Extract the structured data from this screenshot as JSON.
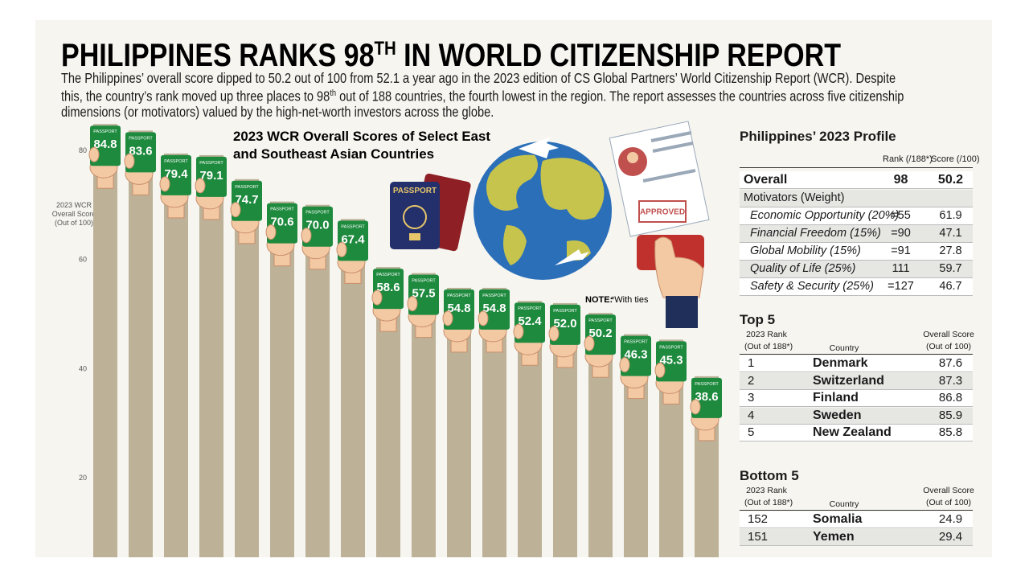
{
  "header": {
    "title": "PHILIPPINES RANKS 98",
    "title_sup": "TH",
    "title_end": " IN WORLD CITIZENSHIP REPORT",
    "intro_1": "The Philippines’ overall score dipped to 50.2 out of 100 from 52.1 a year ago in the 2023 edition of CS Global Partners’ World Citizenship Report (WCR). Despite this, the country’s rank moved up three places to 98",
    "intro_sup": "th",
    "intro_2": " out of 188 countries, the fourth lowest in the region. The report assesses the countries across five citizenship dimensions (or motivators) valued by the high-net-worth investors across the globe."
  },
  "chart_data": {
    "type": "bar",
    "title": [
      "2023 WCR Overall Scores of Select East",
      "and Southeast Asian Countries"
    ],
    "y_label": [
      "2023 WCR",
      "Overall Score",
      "(Out of 100)"
    ],
    "categories": [
      null,
      null,
      null,
      null,
      null,
      null,
      null,
      null,
      null,
      null,
      null,
      null,
      null,
      null,
      null,
      null,
      null,
      null
    ],
    "values": [
      84.8,
      83.6,
      79.4,
      79.1,
      74.7,
      70.6,
      70.0,
      67.4,
      58.6,
      57.5,
      54.8,
      54.8,
      52.4,
      52.0,
      50.2,
      46.3,
      45.3,
      38.6
    ],
    "value_labels": [
      "84.8",
      "83.6",
      "79.4",
      "79.1",
      "74.7",
      "70.6",
      "70.0",
      "67.4",
      "58.6",
      "57.5",
      "54.8",
      "54.8",
      "52.4",
      "52.0",
      "50.2",
      "46.3",
      "45.3",
      "38.6"
    ],
    "color": "#bdb198",
    "passport_color": "#1e8a3e",
    "passport_label": "PASSPORT",
    "ylim": [
      0,
      100
    ],
    "yticks": [
      20,
      40,
      60,
      80
    ],
    "note_label": "NOTE:",
    "note": " *With ties"
  },
  "illustration": {
    "passport": "PASSPORT",
    "approved": "APPROVED"
  },
  "profile": {
    "title": "Philippines’ 2023 Profile",
    "columns": [
      "Rank (/188*)",
      "Score (/100)"
    ],
    "rows": [
      [
        "Overall",
        "98",
        "50.2"
      ],
      [
        "Motivators (Weight)"
      ],
      [
        "Economic Opportunity (20%)",
        "=55",
        "61.9"
      ],
      [
        "Financial Freedom (15%)",
        "=90",
        "47.1"
      ],
      [
        "Global Mobility (15%)",
        "=91",
        "27.8"
      ],
      [
        "Quality of Life (25%)",
        "111",
        "59.7"
      ],
      [
        "Safety & Security (25%)",
        "=127",
        "46.7"
      ]
    ]
  },
  "top5": {
    "title": "Top 5",
    "columns": [
      [
        "2023 Rank",
        "(Out of 188*)"
      ],
      [
        "Country"
      ],
      [
        "Overall Score",
        "(Out of 100)"
      ]
    ],
    "rows": [
      [
        "1",
        "Denmark",
        "87.6"
      ],
      [
        "2",
        "Switzerland",
        "87.3"
      ],
      [
        "3",
        "Finland",
        "86.8"
      ],
      [
        "4",
        "Sweden",
        "85.9"
      ],
      [
        "5",
        "New Zealand",
        "85.8"
      ]
    ]
  },
  "bottom5": {
    "title": "Bottom 5",
    "columns": [
      [
        "2023 Rank",
        "(Out of 188*)"
      ],
      [
        "Country"
      ],
      [
        "Overall Score",
        "(Out of 100)"
      ]
    ],
    "rows": [
      [
        "152",
        "Somalia",
        "24.9"
      ],
      [
        "151",
        "Yemen",
        "29.4"
      ]
    ]
  }
}
